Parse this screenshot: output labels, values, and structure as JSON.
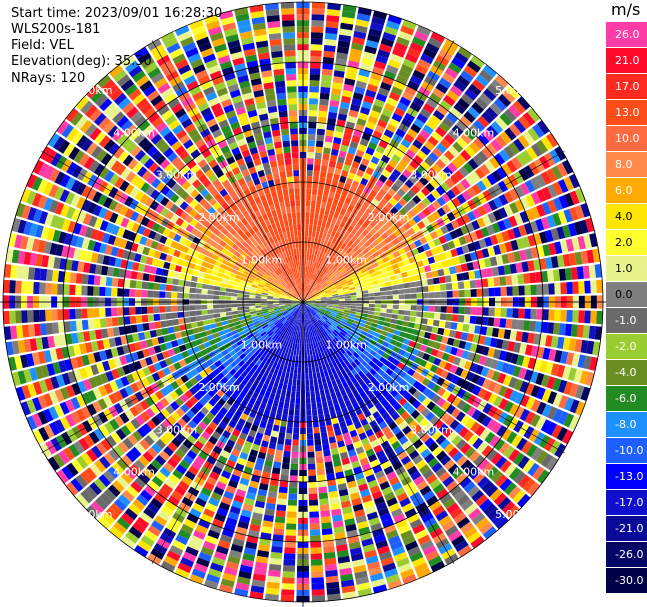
{
  "header": {
    "start_time": "Start time: 2023/09/01 16:28:30",
    "instrument": "WLS200s-181",
    "field": "Field: VEL",
    "elevation": "Elevation(deg): 35.30",
    "nrays": "NRays: 120"
  },
  "colorbar": {
    "unit": "m/s",
    "segments": [
      {
        "label": "26.0",
        "color": "#ff3ba8",
        "dark": false
      },
      {
        "label": "21.0",
        "color": "#ff0a2a",
        "dark": false
      },
      {
        "label": "17.0",
        "color": "#ff2a1f",
        "dark": false
      },
      {
        "label": "13.0",
        "color": "#ff4d1a",
        "dark": false
      },
      {
        "label": "10.0",
        "color": "#ff6a40",
        "dark": false
      },
      {
        "label": "8.0",
        "color": "#ff8a4a",
        "dark": false
      },
      {
        "label": "6.0",
        "color": "#ffaa00",
        "dark": false
      },
      {
        "label": "4.0",
        "color": "#ffe600",
        "dark": true
      },
      {
        "label": "2.0",
        "color": "#ffff2e",
        "dark": true
      },
      {
        "label": "1.0",
        "color": "#e9f58c",
        "dark": true
      },
      {
        "label": "0.0",
        "color": "#7f7f7f",
        "dark": true
      },
      {
        "label": "-1.0",
        "color": "#6a6a6a",
        "dark": false
      },
      {
        "label": "-2.0",
        "color": "#9acd32",
        "dark": false
      },
      {
        "label": "-4.0",
        "color": "#6b8e23",
        "dark": false
      },
      {
        "label": "-6.0",
        "color": "#228b22",
        "dark": false
      },
      {
        "label": "-8.0",
        "color": "#1e90ff",
        "dark": false
      },
      {
        "label": "-10.0",
        "color": "#1e5fff",
        "dark": false
      },
      {
        "label": "-13.0",
        "color": "#0000ff",
        "dark": false
      },
      {
        "label": "-17.0",
        "color": "#1010cc",
        "dark": false
      },
      {
        "label": "-21.0",
        "color": "#0a0a99",
        "dark": false
      },
      {
        "label": "-26.0",
        "color": "#050566",
        "dark": false
      },
      {
        "label": "-30.0",
        "color": "#000044",
        "dark": false
      }
    ]
  },
  "chart_data": {
    "type": "heatmap",
    "title": "",
    "field": "VEL",
    "units": "m/s",
    "nrays": 120,
    "elevation_deg": 35.3,
    "range_rings_km": [
      1.0,
      2.0,
      3.0,
      4.0,
      5.0
    ],
    "ring_labels": [
      "1.00km",
      "2.00km",
      "3.00km",
      "4.00km",
      "5.00km"
    ],
    "clean_region_max_km": 1.9,
    "velocity_pattern": {
      "north_sector": "positive 8 to 21 m/s (red/orange)",
      "near_horizontal": "near 0 m/s (yellow/grey)",
      "south_sector": "negative -10 to -17 m/s (blue)",
      "beyond_clean_range": "noise"
    },
    "color_levels": [
      -30,
      -26,
      -21,
      -17,
      -13,
      -10,
      -8,
      -6,
      -4,
      -2,
      -1,
      0,
      1,
      2,
      4,
      6,
      8,
      10,
      13,
      17,
      21,
      26
    ]
  }
}
